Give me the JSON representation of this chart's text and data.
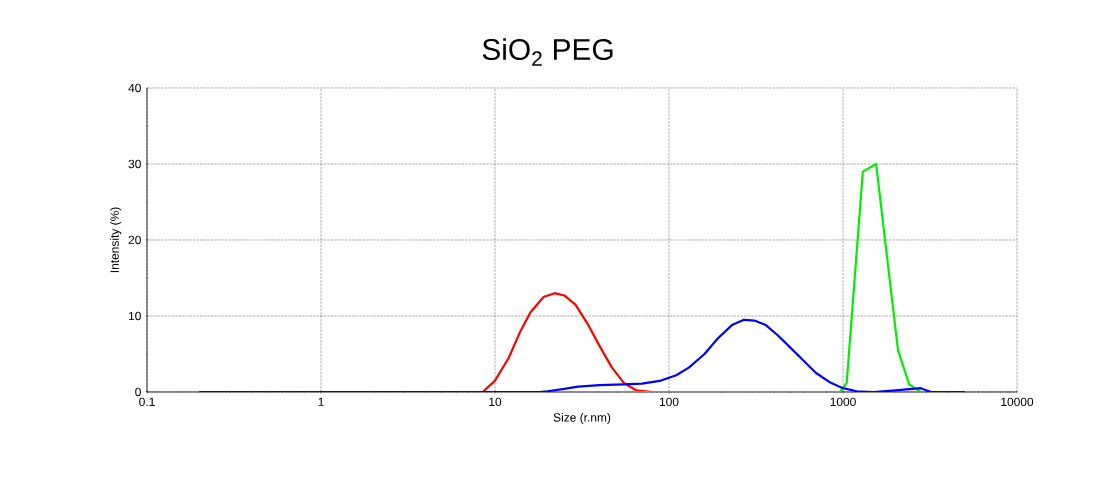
{
  "chart_data": {
    "type": "line",
    "title": "SiO$_{2}$  PEG",
    "xlabel": "Size (r.nm)",
    "ylabel": "Intensity (%)",
    "log": "x",
    "grid": true,
    "marker": "none",
    "line_style": "solid",
    "xlim": [
      0.1,
      10000
    ],
    "ylim": [
      0,
      40
    ],
    "xticks": [
      0.1,
      1,
      10,
      100,
      1000,
      10000
    ],
    "yticks": [
      0,
      10,
      20,
      30,
      40
    ],
    "series": [
      {
        "color": "#ff0000",
        "x": [
          8.5,
          10,
          12,
          14,
          16,
          19,
          22,
          25,
          29,
          34,
          40,
          47,
          55,
          65,
          80
        ],
        "values": [
          0,
          1.5,
          4.5,
          8,
          10.5,
          12.5,
          13,
          12.7,
          11.5,
          9,
          6,
          3.2,
          1.2,
          0.2,
          0
        ]
      },
      {
        "color": "#00ee00",
        "x": [
          20,
          100,
          960,
          1050,
          1300,
          1550,
          2070,
          2400,
          2800
        ],
        "values": [
          0,
          0,
          0,
          1.2,
          29,
          30,
          5.5,
          1,
          0
        ]
      },
      {
        "color": "#0000ff",
        "x": [
          0.2,
          1,
          10,
          18,
          20,
          25,
          30,
          40,
          55,
          70,
          90,
          110,
          130,
          160,
          190,
          230,
          270,
          310,
          360,
          420,
          500,
          600,
          700,
          850,
          1000,
          1200,
          1500,
          2000,
          2500,
          2800,
          3200,
          5000
        ],
        "values": [
          0,
          0,
          0,
          0,
          0.1,
          0.4,
          0.7,
          0.9,
          1,
          1.1,
          1.5,
          2.2,
          3.2,
          5,
          7,
          8.8,
          9.5,
          9.4,
          8.8,
          7.5,
          5.8,
          4,
          2.5,
          1.2,
          0.5,
          0.1,
          0,
          0.2,
          0.4,
          0.5,
          0,
          0
        ]
      }
    ]
  }
}
